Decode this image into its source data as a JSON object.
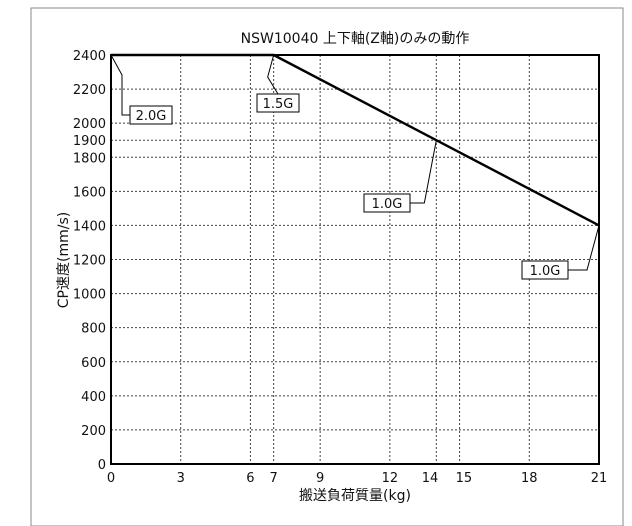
{
  "chart_data": {
    "type": "line",
    "title": "NSW10040 上下軸(Z軸)のみの動作",
    "xlabel": "搬送負荷質量(kg)",
    "ylabel": "CP速度(mm/s)",
    "xlim": [
      0,
      21
    ],
    "ylim": [
      0,
      2400
    ],
    "x_ticks": [
      0,
      3,
      6,
      7,
      9,
      12,
      14,
      15,
      18,
      21
    ],
    "x_tick_labels": [
      "0",
      "3",
      "6",
      "7",
      "9",
      "12",
      "14",
      "15",
      "18",
      "21"
    ],
    "y_ticks": [
      0,
      200,
      400,
      600,
      800,
      1000,
      1200,
      1400,
      1600,
      1800,
      1900,
      2000,
      2200,
      2400
    ],
    "y_tick_labels": [
      "0",
      "200",
      "400",
      "600",
      "800",
      "1000",
      "1200",
      "1400",
      "1600",
      "1800",
      "1900",
      "2000",
      "2200",
      "2400"
    ],
    "grid": true,
    "series": [
      {
        "x": [
          0,
          7,
          21
        ],
        "y": [
          2400,
          2400,
          1400
        ]
      }
    ],
    "annotations": [
      {
        "text": "2.0G",
        "point": [
          0,
          2400
        ]
      },
      {
        "text": "1.5G",
        "point": [
          7,
          2400
        ]
      },
      {
        "text": "1.0G",
        "point": [
          14,
          1900
        ]
      },
      {
        "text": "1.0G",
        "point": [
          21,
          1400
        ]
      }
    ]
  }
}
